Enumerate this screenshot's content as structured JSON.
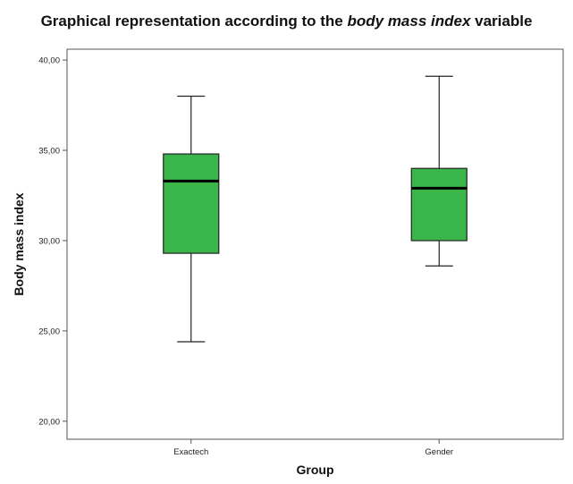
{
  "chart_data": {
    "type": "boxplot",
    "title_parts": {
      "before": "Graphical representation according to the ",
      "italic": "body mass index",
      "after": " variable"
    },
    "xlabel": "Group",
    "ylabel": "Body mass index",
    "ylim": [
      19.0,
      40.6
    ],
    "yticks": [
      {
        "value": 20,
        "label": "20,00"
      },
      {
        "value": 25,
        "label": "25,00"
      },
      {
        "value": 30,
        "label": "30,00"
      },
      {
        "value": 35,
        "label": "35,00"
      },
      {
        "value": 40,
        "label": "40,00"
      }
    ],
    "categories": [
      "Exactech",
      "Gender"
    ],
    "boxes": [
      {
        "category": "Exactech",
        "min": 24.4,
        "q1": 29.3,
        "median": 33.3,
        "q3": 34.8,
        "max": 38.0
      },
      {
        "category": "Gender",
        "min": 28.6,
        "q1": 30.0,
        "median": 32.9,
        "q3": 34.0,
        "max": 39.1
      }
    ],
    "box_color": "#3ab54a",
    "grid": false
  }
}
